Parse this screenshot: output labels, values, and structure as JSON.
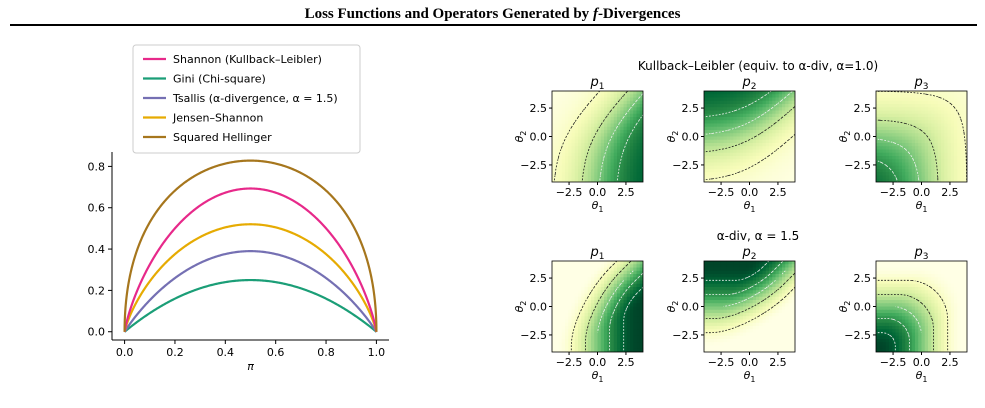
{
  "header": {
    "title_prefix": "Loss Functions and Operators Generated by ",
    "title_f": "f",
    "title_suffix": "-Divergences"
  },
  "chart_data": [
    {
      "type": "line",
      "xlabel": "π",
      "ylabel": "",
      "xlim": [
        -0.05,
        1.05
      ],
      "ylim": [
        -0.04,
        0.86
      ],
      "xticks": [
        "0.0",
        "0.2",
        "0.4",
        "0.6",
        "0.8",
        "1.0"
      ],
      "yticks": [
        "0.0",
        "0.2",
        "0.4",
        "0.6",
        "0.8"
      ],
      "legend_position": "top",
      "series": [
        {
          "name": "Shannon (Kullback–Leibler)",
          "color": "#e7298a",
          "peak": 0.693,
          "family": "shannon"
        },
        {
          "name": "Gini (Chi-square)",
          "color": "#1b9e77",
          "peak": 0.25,
          "family": "gini"
        },
        {
          "name": "Tsallis (α-divergence, α = 1.5)",
          "color": "#7570b3",
          "peak": 0.39,
          "family": "tsallis"
        },
        {
          "name": "Jensen–Shannon",
          "color": "#e6ab02",
          "peak": 0.52,
          "family": "js"
        },
        {
          "name": "Squared Hellinger",
          "color": "#a6761d",
          "peak": 0.828,
          "family": "hellinger"
        }
      ]
    },
    {
      "type": "heatmap",
      "rows": [
        {
          "title": "Kullback–Leibler (equiv. to α-div, α=1.0)",
          "panels": [
            {
              "title": "p",
              "sub": "1",
              "kind": "p1",
              "alpha": 1.0
            },
            {
              "title": "p",
              "sub": "2",
              "kind": "p2",
              "alpha": 1.0
            },
            {
              "title": "p",
              "sub": "3",
              "kind": "p3",
              "alpha": 1.0
            }
          ]
        },
        {
          "title": "α-div, α = 1.5",
          "panels": [
            {
              "title": "p",
              "sub": "1",
              "kind": "p1",
              "alpha": 1.5
            },
            {
              "title": "p",
              "sub": "2",
              "kind": "p2",
              "alpha": 1.5
            },
            {
              "title": "p",
              "sub": "3",
              "kind": "p3",
              "alpha": 1.5
            }
          ]
        }
      ],
      "xlabel": "θ",
      "xlabel_sub": "1",
      "ylabel": "θ",
      "ylabel_sub": "2",
      "xlim": [
        -4,
        4
      ],
      "ylim": [
        -4,
        4
      ],
      "xticks": [
        "−2.5",
        "0.0",
        "2.5"
      ],
      "yticks": [
        "2.5",
        "0.0",
        "−2.5"
      ],
      "colormap": "yellow-green"
    }
  ]
}
